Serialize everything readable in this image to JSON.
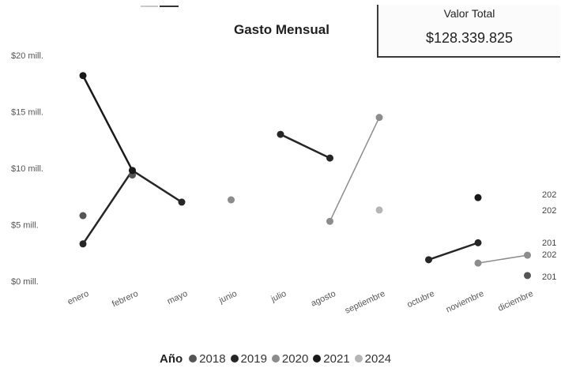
{
  "header": {
    "title": "Gasto Mensual"
  },
  "kpi": {
    "label": "Valor Total",
    "value": "$128.339.825"
  },
  "legend": {
    "title": "Año"
  },
  "chart_data": {
    "type": "line",
    "title": "Gasto Mensual",
    "xlabel": "",
    "ylabel": "",
    "categories": [
      "enero",
      "febrero",
      "mayo",
      "junio",
      "julio",
      "agosto",
      "septiembre",
      "octubre",
      "noviembre",
      "diciembre"
    ],
    "ylim": [
      0,
      20000000
    ],
    "yticks": [
      {
        "value": 0,
        "label": "$0 mill."
      },
      {
        "value": 5000000,
        "label": "$5 mill."
      },
      {
        "value": 10000000,
        "label": "$10 mill."
      },
      {
        "value": 15000000,
        "label": "$15 mill."
      },
      {
        "value": 20000000,
        "label": "$20 mill."
      }
    ],
    "grid": false,
    "legend_position": "bottom",
    "series": [
      {
        "name": "2018",
        "color": "#555555",
        "line": false,
        "values": [
          5800000,
          9400000,
          null,
          null,
          null,
          null,
          null,
          null,
          null,
          500000
        ]
      },
      {
        "name": "2019",
        "color": "#262626",
        "line": true,
        "values": [
          3300000,
          9800000,
          7000000,
          null,
          13000000,
          10900000,
          null,
          1900000,
          3400000,
          null
        ]
      },
      {
        "name": "2020",
        "color": "#8c8c8c",
        "line": true,
        "values": [
          null,
          null,
          null,
          7200000,
          null,
          5300000,
          14500000,
          null,
          1600000,
          2300000
        ]
      },
      {
        "name": "2021",
        "color": "#1a1a1a",
        "line": true,
        "values": [
          18200000,
          9800000,
          null,
          null,
          null,
          null,
          null,
          null,
          7400000,
          null
        ]
      },
      {
        "name": "2024",
        "color": "#b5b5b5",
        "line": false,
        "values": [
          null,
          null,
          null,
          null,
          null,
          null,
          6300000,
          null,
          null,
          null
        ]
      }
    ],
    "end_labels": [
      "202",
      "202",
      "201",
      "202",
      "201"
    ]
  }
}
